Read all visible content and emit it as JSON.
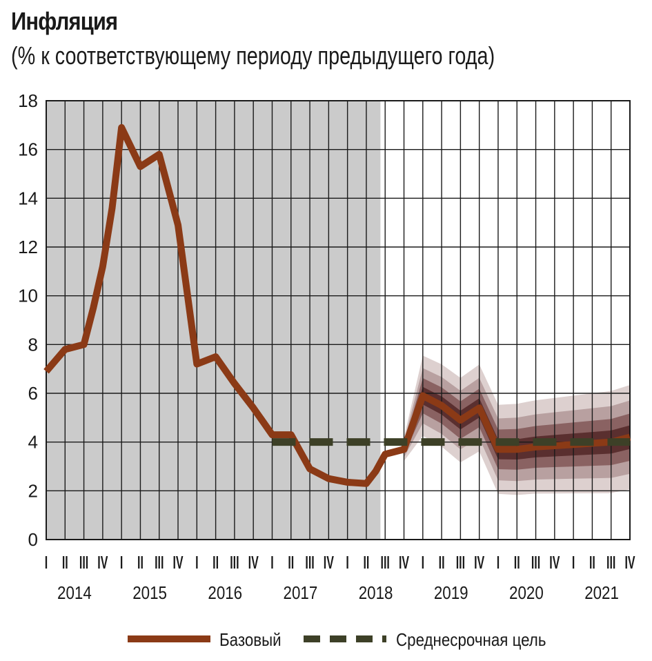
{
  "header": {
    "title": "Инфляция",
    "subtitle": "(% к соответствующему периоду предыдущего года)"
  },
  "chart_data": {
    "type": "line",
    "title": "Инфляция",
    "subtitle": "(% к соответствующему периоду предыдущего года)",
    "xlabel": "",
    "ylabel": "",
    "ylim": [
      0,
      18
    ],
    "y_ticks": [
      0,
      2,
      4,
      6,
      8,
      10,
      12,
      14,
      16,
      18
    ],
    "quarters": [
      "I",
      "II",
      "III",
      "IV",
      "I",
      "II",
      "III",
      "IV",
      "I",
      "II",
      "III",
      "IV",
      "I",
      "II",
      "III",
      "IV",
      "I",
      "II",
      "III",
      "IV",
      "I",
      "II",
      "III",
      "IV",
      "I",
      "II",
      "III",
      "IV",
      "I",
      "II",
      "III",
      "IV"
    ],
    "years": [
      "2014",
      "2015",
      "2016",
      "2017",
      "2018",
      "2019",
      "2020",
      "2021"
    ],
    "grid": true,
    "shaded_history_until_x": 17.75,
    "legend_position": "bottom",
    "series": [
      {
        "name": "Базовый",
        "color": "#8b3a16",
        "style": "solid",
        "x": [
          0,
          1,
          2,
          2.5,
          3,
          3.5,
          4,
          5,
          6,
          7,
          8,
          9,
          10,
          11,
          12,
          12.5,
          13,
          14,
          15,
          16,
          17,
          17.5,
          18,
          19,
          20,
          21,
          22,
          23,
          24,
          25,
          26,
          27,
          28,
          29,
          30,
          31
        ],
        "y": [
          6.9,
          7.8,
          8.0,
          9.5,
          11.2,
          13.6,
          16.9,
          15.3,
          15.8,
          12.9,
          7.2,
          7.5,
          6.4,
          5.4,
          4.3,
          4.3,
          4.3,
          2.9,
          2.5,
          2.35,
          2.3,
          2.8,
          3.5,
          3.7,
          5.9,
          5.5,
          4.9,
          5.4,
          3.7,
          3.7,
          3.8,
          3.85,
          3.9,
          3.95,
          4.0,
          4.2
        ]
      },
      {
        "name": "Среднесрочная цель",
        "color": "#3d4027",
        "style": "dashed",
        "x": [
          12,
          31
        ],
        "y": [
          4,
          4
        ]
      }
    ],
    "forecast_bands": {
      "x": [
        19,
        20,
        21,
        22,
        23,
        24,
        25,
        26,
        27,
        28,
        29,
        30,
        31
      ],
      "center": [
        3.7,
        5.9,
        5.5,
        4.9,
        5.4,
        3.7,
        3.7,
        3.8,
        3.85,
        3.9,
        3.95,
        4.0,
        4.2
      ],
      "half_widths": [
        0.35,
        0.7,
        1.1,
        1.6
      ],
      "half_width_growth": 0.045,
      "colors": [
        "#5a2f2f",
        "#8a6262",
        "#b8a0a0",
        "#ddd0cf"
      ]
    }
  },
  "legend": {
    "base_label": "Базовый",
    "target_label": "Среднесрочная цель"
  },
  "colors": {
    "history_bg": "#cbcbcb",
    "grid": "#1a1a1a",
    "base_line": "#8b3a16",
    "target_line": "#3d4027"
  }
}
